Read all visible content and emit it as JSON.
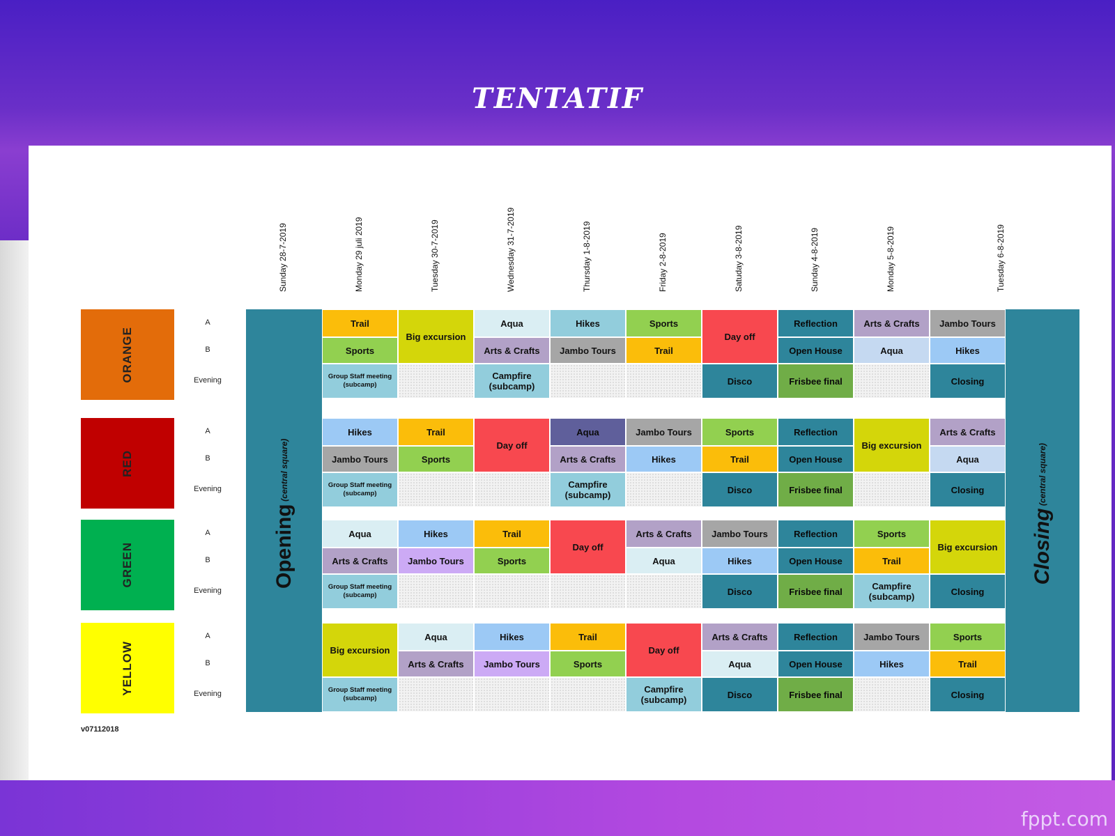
{
  "title": "TENTATIF",
  "brand": "fppt.com",
  "version": "v07112018",
  "days": [
    "Sunday 28-7-2019",
    "Monday 29 juli 2019",
    "Tuesday 30-7-2019",
    "Wednesday 31-7-2019",
    "Thursday 1-8-2019",
    "Friday 2-8-2019",
    "Satuday 3-8-2019",
    "Sunday 4-8-2019",
    "Monday 5-8-2019",
    "Tuesday 6-8-2019"
  ],
  "row_labels": [
    "A",
    "B",
    "Evening"
  ],
  "opening": {
    "main": "Opening",
    "sub": "(central square)"
  },
  "closing": {
    "main": "Closing",
    "sub": "(central square)"
  },
  "colors": {
    "Trail": "#fbbd0a",
    "Sports": "#92d050",
    "Big excursion": "#d4d60a",
    "Aqua": "#daeef3",
    "Arts & Crafts": "#b2a1c7",
    "Hikes": "#9cc9f5",
    "Jambo Tours": "#a6a6a6",
    "Day off": "#f8484f",
    "Reflection": "#2e859b",
    "Open House": "#2e859b",
    "Disco": "#2e859b",
    "Frisbee final": "#70ad47",
    "Closing": "#2e859b",
    "Campfire (subcamp)": "#92cddc",
    "Group Staff meeting (subcamp)": "#92cddc",
    "Aqua (dark)": "#5f5f9b",
    "Aqua (blue)": "#c5d9f1",
    "Jambo Tours (violet)": "#ccaaf5"
  },
  "groups": [
    {
      "name": "ORANGE",
      "color": "#e36c0a",
      "cells": [
        {
          "c": 1,
          "r": 0,
          "h": 1,
          "t": "Trail",
          "k": "Trail"
        },
        {
          "c": 1,
          "r": 1,
          "h": 1,
          "t": "Sports",
          "k": "Sports"
        },
        {
          "c": 1,
          "r": 2,
          "h": 1,
          "t": "Group Staff meeting (subcamp)",
          "k": "Group Staff meeting (subcamp)",
          "s": true
        },
        {
          "c": 2,
          "r": 0,
          "h": 2,
          "t": "Big excursion",
          "k": "Big excursion"
        },
        {
          "c": 2,
          "r": 2,
          "h": 1,
          "t": "",
          "k": "empty"
        },
        {
          "c": 3,
          "r": 0,
          "h": 1,
          "t": "Aqua",
          "k": "Aqua"
        },
        {
          "c": 3,
          "r": 1,
          "h": 1,
          "t": "Arts & Crafts",
          "k": "Arts & Crafts"
        },
        {
          "c": 3,
          "r": 2,
          "h": 1,
          "t": "Campfire (subcamp)",
          "k": "Campfire (subcamp)"
        },
        {
          "c": 4,
          "r": 0,
          "h": 1,
          "t": "Hikes",
          "k": "Campfire (subcamp)"
        },
        {
          "c": 4,
          "r": 1,
          "h": 1,
          "t": "Jambo Tours",
          "k": "Jambo Tours"
        },
        {
          "c": 4,
          "r": 2,
          "h": 1,
          "t": "",
          "k": "empty"
        },
        {
          "c": 5,
          "r": 0,
          "h": 1,
          "t": "Sports",
          "k": "Sports"
        },
        {
          "c": 5,
          "r": 1,
          "h": 1,
          "t": "Trail",
          "k": "Trail"
        },
        {
          "c": 5,
          "r": 2,
          "h": 1,
          "t": "",
          "k": "empty"
        },
        {
          "c": 6,
          "r": 0,
          "h": 2,
          "t": "Day off",
          "k": "Day off"
        },
        {
          "c": 6,
          "r": 2,
          "h": 1,
          "t": "Disco",
          "k": "Disco"
        },
        {
          "c": 7,
          "r": 0,
          "h": 1,
          "t": "Reflection",
          "k": "Reflection"
        },
        {
          "c": 7,
          "r": 1,
          "h": 1,
          "t": "Open House",
          "k": "Open House"
        },
        {
          "c": 7,
          "r": 2,
          "h": 1,
          "t": "Frisbee final",
          "k": "Frisbee final"
        },
        {
          "c": 8,
          "r": 0,
          "h": 1,
          "t": "Arts & Crafts",
          "k": "Arts & Crafts"
        },
        {
          "c": 8,
          "r": 1,
          "h": 1,
          "t": "Aqua",
          "k": "Aqua (blue)"
        },
        {
          "c": 8,
          "r": 2,
          "h": 1,
          "t": "",
          "k": "empty"
        },
        {
          "c": 9,
          "r": 0,
          "h": 1,
          "t": "Jambo Tours",
          "k": "Jambo Tours"
        },
        {
          "c": 9,
          "r": 1,
          "h": 1,
          "t": "Hikes",
          "k": "Hikes"
        },
        {
          "c": 9,
          "r": 2,
          "h": 1,
          "t": "Closing",
          "k": "Closing"
        }
      ]
    },
    {
      "name": "RED",
      "color": "#c00000",
      "cells": [
        {
          "c": 1,
          "r": 0,
          "h": 1,
          "t": "Hikes",
          "k": "Hikes"
        },
        {
          "c": 1,
          "r": 1,
          "h": 1,
          "t": "Jambo Tours",
          "k": "Jambo Tours"
        },
        {
          "c": 1,
          "r": 2,
          "h": 1,
          "t": "Group Staff meeting (subcamp)",
          "k": "Group Staff meeting (subcamp)",
          "s": true
        },
        {
          "c": 2,
          "r": 0,
          "h": 1,
          "t": "Trail",
          "k": "Trail"
        },
        {
          "c": 2,
          "r": 1,
          "h": 1,
          "t": "Sports",
          "k": "Sports"
        },
        {
          "c": 2,
          "r": 2,
          "h": 1,
          "t": "",
          "k": "empty"
        },
        {
          "c": 3,
          "r": 0,
          "h": 2,
          "t": "Day off",
          "k": "Day off"
        },
        {
          "c": 3,
          "r": 2,
          "h": 1,
          "t": "",
          "k": "empty"
        },
        {
          "c": 4,
          "r": 0,
          "h": 1,
          "t": "Aqua",
          "k": "Aqua (dark)"
        },
        {
          "c": 4,
          "r": 1,
          "h": 1,
          "t": "Arts & Crafts",
          "k": "Arts & Crafts"
        },
        {
          "c": 4,
          "r": 2,
          "h": 1,
          "t": "Campfire (subcamp)",
          "k": "Campfire (subcamp)"
        },
        {
          "c": 5,
          "r": 0,
          "h": 1,
          "t": "Jambo Tours",
          "k": "Jambo Tours"
        },
        {
          "c": 5,
          "r": 1,
          "h": 1,
          "t": "Hikes",
          "k": "Hikes"
        },
        {
          "c": 5,
          "r": 2,
          "h": 1,
          "t": "",
          "k": "empty"
        },
        {
          "c": 6,
          "r": 0,
          "h": 1,
          "t": "Sports",
          "k": "Sports"
        },
        {
          "c": 6,
          "r": 1,
          "h": 1,
          "t": "Trail",
          "k": "Trail"
        },
        {
          "c": 6,
          "r": 2,
          "h": 1,
          "t": "Disco",
          "k": "Disco"
        },
        {
          "c": 7,
          "r": 0,
          "h": 1,
          "t": "Reflection",
          "k": "Reflection"
        },
        {
          "c": 7,
          "r": 1,
          "h": 1,
          "t": "Open House",
          "k": "Open House"
        },
        {
          "c": 7,
          "r": 2,
          "h": 1,
          "t": "Frisbee final",
          "k": "Frisbee final"
        },
        {
          "c": 8,
          "r": 0,
          "h": 2,
          "t": "Big excursion",
          "k": "Big excursion"
        },
        {
          "c": 8,
          "r": 2,
          "h": 1,
          "t": "",
          "k": "empty"
        },
        {
          "c": 9,
          "r": 0,
          "h": 1,
          "t": "Arts & Crafts",
          "k": "Arts & Crafts"
        },
        {
          "c": 9,
          "r": 1,
          "h": 1,
          "t": "Aqua",
          "k": "Aqua (blue)"
        },
        {
          "c": 9,
          "r": 2,
          "h": 1,
          "t": "Closing",
          "k": "Closing"
        }
      ]
    },
    {
      "name": "GREEN",
      "color": "#00b050",
      "cells": [
        {
          "c": 1,
          "r": 0,
          "h": 1,
          "t": "Aqua",
          "k": "Aqua"
        },
        {
          "c": 1,
          "r": 1,
          "h": 1,
          "t": "Arts & Crafts",
          "k": "Arts & Crafts"
        },
        {
          "c": 1,
          "r": 2,
          "h": 1,
          "t": "Group Staff meeting (subcamp)",
          "k": "Group Staff meeting (subcamp)",
          "s": true
        },
        {
          "c": 2,
          "r": 0,
          "h": 1,
          "t": "Hikes",
          "k": "Hikes"
        },
        {
          "c": 2,
          "r": 1,
          "h": 1,
          "t": "Jambo Tours",
          "k": "Jambo Tours (violet)"
        },
        {
          "c": 2,
          "r": 2,
          "h": 1,
          "t": "",
          "k": "empty"
        },
        {
          "c": 3,
          "r": 0,
          "h": 1,
          "t": "Trail",
          "k": "Trail"
        },
        {
          "c": 3,
          "r": 1,
          "h": 1,
          "t": "Sports",
          "k": "Sports"
        },
        {
          "c": 3,
          "r": 2,
          "h": 1,
          "t": "",
          "k": "empty"
        },
        {
          "c": 4,
          "r": 0,
          "h": 2,
          "t": "Day off",
          "k": "Day off"
        },
        {
          "c": 4,
          "r": 2,
          "h": 1,
          "t": "",
          "k": "empty"
        },
        {
          "c": 5,
          "r": 0,
          "h": 1,
          "t": "Arts & Crafts",
          "k": "Arts & Crafts"
        },
        {
          "c": 5,
          "r": 1,
          "h": 1,
          "t": "Aqua",
          "k": "Aqua"
        },
        {
          "c": 5,
          "r": 2,
          "h": 1,
          "t": "",
          "k": "empty"
        },
        {
          "c": 6,
          "r": 0,
          "h": 1,
          "t": "Jambo Tours",
          "k": "Jambo Tours"
        },
        {
          "c": 6,
          "r": 1,
          "h": 1,
          "t": "Hikes",
          "k": "Hikes"
        },
        {
          "c": 6,
          "r": 2,
          "h": 1,
          "t": "Disco",
          "k": "Disco"
        },
        {
          "c": 7,
          "r": 0,
          "h": 1,
          "t": "Reflection",
          "k": "Reflection"
        },
        {
          "c": 7,
          "r": 1,
          "h": 1,
          "t": "Open House",
          "k": "Open House"
        },
        {
          "c": 7,
          "r": 2,
          "h": 1,
          "t": "Frisbee final",
          "k": "Frisbee final"
        },
        {
          "c": 8,
          "r": 0,
          "h": 1,
          "t": "Sports",
          "k": "Sports"
        },
        {
          "c": 8,
          "r": 1,
          "h": 1,
          "t": "Trail",
          "k": "Trail"
        },
        {
          "c": 8,
          "r": 2,
          "h": 1,
          "t": "Campfire (subcamp)",
          "k": "Campfire (subcamp)"
        },
        {
          "c": 9,
          "r": 0,
          "h": 2,
          "t": "Big excursion",
          "k": "Big excursion"
        },
        {
          "c": 9,
          "r": 2,
          "h": 1,
          "t": "Closing",
          "k": "Closing"
        }
      ]
    },
    {
      "name": "YELLOW",
      "color": "#ffff00",
      "cells": [
        {
          "c": 1,
          "r": 0,
          "h": 2,
          "t": "Big excursion",
          "k": "Big excursion"
        },
        {
          "c": 1,
          "r": 2,
          "h": 1,
          "t": "Group Staff meeting (subcamp)",
          "k": "Group Staff meeting (subcamp)",
          "s": true
        },
        {
          "c": 2,
          "r": 0,
          "h": 1,
          "t": "Aqua",
          "k": "Aqua"
        },
        {
          "c": 2,
          "r": 1,
          "h": 1,
          "t": "Arts & Crafts",
          "k": "Arts & Crafts"
        },
        {
          "c": 2,
          "r": 2,
          "h": 1,
          "t": "",
          "k": "empty"
        },
        {
          "c": 3,
          "r": 0,
          "h": 1,
          "t": "Hikes",
          "k": "Hikes"
        },
        {
          "c": 3,
          "r": 1,
          "h": 1,
          "t": "Jambo Tours",
          "k": "Jambo Tours (violet)"
        },
        {
          "c": 3,
          "r": 2,
          "h": 1,
          "t": "",
          "k": "empty"
        },
        {
          "c": 4,
          "r": 0,
          "h": 1,
          "t": "Trail",
          "k": "Trail"
        },
        {
          "c": 4,
          "r": 1,
          "h": 1,
          "t": "Sports",
          "k": "Sports"
        },
        {
          "c": 4,
          "r": 2,
          "h": 1,
          "t": "",
          "k": "empty"
        },
        {
          "c": 5,
          "r": 0,
          "h": 2,
          "t": "Day off",
          "k": "Day off"
        },
        {
          "c": 5,
          "r": 2,
          "h": 1,
          "t": "Campfire (subcamp)",
          "k": "Campfire (subcamp)"
        },
        {
          "c": 6,
          "r": 0,
          "h": 1,
          "t": "Arts & Crafts",
          "k": "Arts & Crafts"
        },
        {
          "c": 6,
          "r": 1,
          "h": 1,
          "t": "Aqua",
          "k": "Aqua"
        },
        {
          "c": 6,
          "r": 2,
          "h": 1,
          "t": "Disco",
          "k": "Disco"
        },
        {
          "c": 7,
          "r": 0,
          "h": 1,
          "t": "Reflection",
          "k": "Reflection"
        },
        {
          "c": 7,
          "r": 1,
          "h": 1,
          "t": "Open House",
          "k": "Open House"
        },
        {
          "c": 7,
          "r": 2,
          "h": 1,
          "t": "Frisbee final",
          "k": "Frisbee final"
        },
        {
          "c": 8,
          "r": 0,
          "h": 1,
          "t": "Jambo Tours",
          "k": "Jambo Tours"
        },
        {
          "c": 8,
          "r": 1,
          "h": 1,
          "t": "Hikes",
          "k": "Hikes"
        },
        {
          "c": 8,
          "r": 2,
          "h": 1,
          "t": "",
          "k": "empty"
        },
        {
          "c": 9,
          "r": 0,
          "h": 1,
          "t": "Sports",
          "k": "Sports"
        },
        {
          "c": 9,
          "r": 1,
          "h": 1,
          "t": "Trail",
          "k": "Trail"
        },
        {
          "c": 9,
          "r": 2,
          "h": 1,
          "t": "Closing",
          "k": "Closing"
        }
      ]
    }
  ]
}
